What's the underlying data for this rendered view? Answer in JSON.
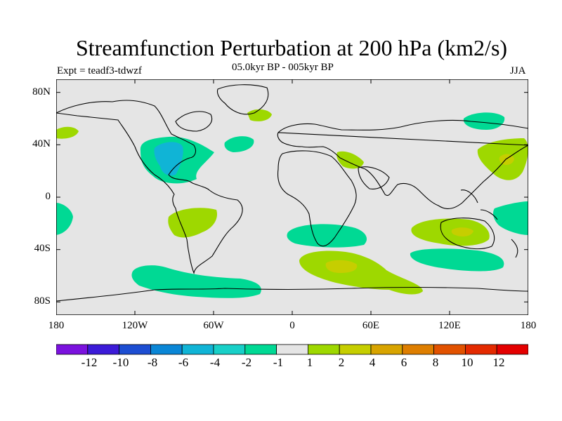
{
  "title": "Streamfunction Perturbation at 200 hPa (km2/s)",
  "left_string": "Expt = teadf3-tdwzf",
  "center_string": "05.0kyr BP - 005kyr BP",
  "right_string": "JJA",
  "y_ticks": [
    "80N",
    "40N",
    "0",
    "40S",
    "80S"
  ],
  "x_ticks": [
    "180",
    "120W",
    "60W",
    "0",
    "60E",
    "120E",
    "180"
  ],
  "colorbar": {
    "labels": [
      "-12",
      "-10",
      "-8",
      "-6",
      "-4",
      "-2",
      "-1",
      "1",
      "2",
      "4",
      "6",
      "8",
      "10",
      "12"
    ],
    "colors": [
      "#7b12de",
      "#3c1bd8",
      "#1d4ed2",
      "#0a86d6",
      "#10b4d6",
      "#18d0c8",
      "#00d994",
      "#e5e5e5",
      "#9ed800",
      "#c6ce00",
      "#d8a400",
      "#de7e00",
      "#e25200",
      "#e42a00",
      "#e40000"
    ]
  },
  "map_colors": {
    "background": "#e5e5e5",
    "neg1": "#00d994",
    "neg2": "#10b4d6",
    "pos1": "#9ed800",
    "pos2": "#c6ce00"
  }
}
